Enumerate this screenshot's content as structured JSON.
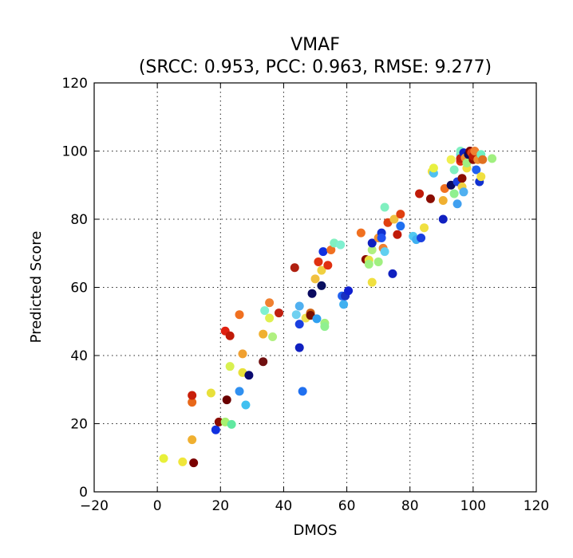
{
  "chart_data": {
    "type": "scatter",
    "title": "VMAF",
    "subtitle": "(SRCC: 0.953, PCC: 0.963, RMSE: 9.277)",
    "xlabel": "DMOS",
    "ylabel": "Predicted Score",
    "xlim": [
      -20,
      120
    ],
    "ylim": [
      0,
      120
    ],
    "xticks": [
      -20,
      0,
      20,
      40,
      60,
      80,
      100,
      120
    ],
    "yticks": [
      0,
      20,
      40,
      60,
      80,
      100,
      120
    ],
    "grid": true,
    "colormap": "jet",
    "points": [
      {
        "x": 2,
        "y": 9.8,
        "c": "#e8f03a"
      },
      {
        "x": 8,
        "y": 8.8,
        "c": "#f0e63a"
      },
      {
        "x": 11.5,
        "y": 8.5,
        "c": "#7a0000"
      },
      {
        "x": 11,
        "y": 15.3,
        "c": "#f0b030"
      },
      {
        "x": 11,
        "y": 26.3,
        "c": "#e8681a"
      },
      {
        "x": 11,
        "y": 28.3,
        "c": "#c81e0a"
      },
      {
        "x": 17,
        "y": 29,
        "c": "#e8e03a"
      },
      {
        "x": 18.5,
        "y": 18.2,
        "c": "#1030e0"
      },
      {
        "x": 19.5,
        "y": 20.5,
        "c": "#8a0c00"
      },
      {
        "x": 21.5,
        "y": 20.5,
        "c": "#a8f070"
      },
      {
        "x": 23.5,
        "y": 19.8,
        "c": "#60e8a0"
      },
      {
        "x": 22,
        "y": 27,
        "c": "#6a0000"
      },
      {
        "x": 23,
        "y": 36.8,
        "c": "#d8f050"
      },
      {
        "x": 21.5,
        "y": 47.2,
        "c": "#e02010"
      },
      {
        "x": 23,
        "y": 45.8,
        "c": "#c01a08"
      },
      {
        "x": 26,
        "y": 29.5,
        "c": "#3090f0"
      },
      {
        "x": 27,
        "y": 35,
        "c": "#e8e03a"
      },
      {
        "x": 28,
        "y": 25.5,
        "c": "#40c0f0"
      },
      {
        "x": 26,
        "y": 52,
        "c": "#f07020"
      },
      {
        "x": 27,
        "y": 40.5,
        "c": "#f0a030"
      },
      {
        "x": 29,
        "y": 34.2,
        "c": "#0a0a70"
      },
      {
        "x": 33.5,
        "y": 38.2,
        "c": "#701010"
      },
      {
        "x": 33.5,
        "y": 46.3,
        "c": "#f0b030"
      },
      {
        "x": 34,
        "y": 53.2,
        "c": "#80f0d0"
      },
      {
        "x": 35.5,
        "y": 55.5,
        "c": "#f08030"
      },
      {
        "x": 35.5,
        "y": 51,
        "c": "#e0f050"
      },
      {
        "x": 36.5,
        "y": 45.5,
        "c": "#b0f080"
      },
      {
        "x": 38.5,
        "y": 52.5,
        "c": "#c02010"
      },
      {
        "x": 43.5,
        "y": 65.8,
        "c": "#b02010"
      },
      {
        "x": 44,
        "y": 52,
        "c": "#70d0f0"
      },
      {
        "x": 45,
        "y": 49.2,
        "c": "#1a40e0"
      },
      {
        "x": 45,
        "y": 42.3,
        "c": "#1020c0"
      },
      {
        "x": 45,
        "y": 54.5,
        "c": "#50b0f0"
      },
      {
        "x": 46,
        "y": 29.5,
        "c": "#2070f0"
      },
      {
        "x": 47,
        "y": 51,
        "c": "#f0e050"
      },
      {
        "x": 48.5,
        "y": 52.5,
        "c": "#d06010"
      },
      {
        "x": 48.5,
        "y": 51.8,
        "c": "#7a1000"
      },
      {
        "x": 49,
        "y": 58.2,
        "c": "#0a0a60"
      },
      {
        "x": 50,
        "y": 62.5,
        "c": "#f0c040"
      },
      {
        "x": 50.5,
        "y": 50.8,
        "c": "#30a0f0"
      },
      {
        "x": 51,
        "y": 67.5,
        "c": "#e03010"
      },
      {
        "x": 52,
        "y": 60.5,
        "c": "#0a1060"
      },
      {
        "x": 52,
        "y": 65,
        "c": "#f0d040"
      },
      {
        "x": 52.5,
        "y": 70.5,
        "c": "#1030e0"
      },
      {
        "x": 53,
        "y": 49.5,
        "c": "#a0f080"
      },
      {
        "x": 53,
        "y": 48.5,
        "c": "#90f090"
      },
      {
        "x": 54,
        "y": 66.5,
        "c": "#e03010"
      },
      {
        "x": 55,
        "y": 71,
        "c": "#f07020"
      },
      {
        "x": 56,
        "y": 73,
        "c": "#80f0c0"
      },
      {
        "x": 58,
        "y": 72.5,
        "c": "#80f0d0"
      },
      {
        "x": 58.5,
        "y": 57.5,
        "c": "#2060f0"
      },
      {
        "x": 59,
        "y": 55,
        "c": "#40b0f0"
      },
      {
        "x": 59.5,
        "y": 57.5,
        "c": "#1a30c0"
      },
      {
        "x": 60.5,
        "y": 59,
        "c": "#1020d0"
      },
      {
        "x": 64.5,
        "y": 76,
        "c": "#f07020"
      },
      {
        "x": 66,
        "y": 68.2,
        "c": "#8a0c00"
      },
      {
        "x": 67,
        "y": 68,
        "c": "#e8e040"
      },
      {
        "x": 67,
        "y": 66.8,
        "c": "#a0f080"
      },
      {
        "x": 68,
        "y": 71,
        "c": "#b0f080"
      },
      {
        "x": 68,
        "y": 61.5,
        "c": "#f0e040"
      },
      {
        "x": 68,
        "y": 73,
        "c": "#1020c0"
      },
      {
        "x": 70,
        "y": 74.5,
        "c": "#f09030"
      },
      {
        "x": 70,
        "y": 67.5,
        "c": "#a0f080"
      },
      {
        "x": 71,
        "y": 76,
        "c": "#1030d0"
      },
      {
        "x": 71,
        "y": 74.5,
        "c": "#2050f0"
      },
      {
        "x": 71.5,
        "y": 71.5,
        "c": "#f08030"
      },
      {
        "x": 72,
        "y": 70.5,
        "c": "#60d0f0"
      },
      {
        "x": 72,
        "y": 83.5,
        "c": "#80f0c0"
      },
      {
        "x": 73,
        "y": 79,
        "c": "#e04010"
      },
      {
        "x": 74.5,
        "y": 64,
        "c": "#1020c0"
      },
      {
        "x": 75,
        "y": 80,
        "c": "#f0c040"
      },
      {
        "x": 76,
        "y": 75.5,
        "c": "#c01a08"
      },
      {
        "x": 77,
        "y": 81.5,
        "c": "#e04010"
      },
      {
        "x": 77,
        "y": 78,
        "c": "#2070f0"
      },
      {
        "x": 81,
        "y": 75,
        "c": "#50c8f0"
      },
      {
        "x": 82,
        "y": 74,
        "c": "#40b0f0"
      },
      {
        "x": 83,
        "y": 87.5,
        "c": "#c01a08"
      },
      {
        "x": 83.5,
        "y": 74.5,
        "c": "#1a40e0"
      },
      {
        "x": 84.5,
        "y": 77.5,
        "c": "#f0e040"
      },
      {
        "x": 86.5,
        "y": 86,
        "c": "#8a0c00"
      },
      {
        "x": 87,
        "y": 94,
        "c": "#f0e040"
      },
      {
        "x": 87.5,
        "y": 93.5,
        "c": "#50c0f0"
      },
      {
        "x": 87.5,
        "y": 95,
        "c": "#e8f040"
      },
      {
        "x": 90.5,
        "y": 80,
        "c": "#1020c0"
      },
      {
        "x": 90.5,
        "y": 85.5,
        "c": "#f0b030"
      },
      {
        "x": 91,
        "y": 89,
        "c": "#f07020"
      },
      {
        "x": 93,
        "y": 90,
        "c": "#0a0a60"
      },
      {
        "x": 93,
        "y": 97.5,
        "c": "#f0f050"
      },
      {
        "x": 94,
        "y": 94.5,
        "c": "#80f0c0"
      },
      {
        "x": 94,
        "y": 87.5,
        "c": "#90f090"
      },
      {
        "x": 95,
        "y": 84.5,
        "c": "#40a0f0"
      },
      {
        "x": 95,
        "y": 91,
        "c": "#1a40e0"
      },
      {
        "x": 96,
        "y": 99,
        "c": "#60e0e0"
      },
      {
        "x": 96,
        "y": 100,
        "c": "#80f0c0"
      },
      {
        "x": 96,
        "y": 97,
        "c": "#e03010"
      },
      {
        "x": 96,
        "y": 97.8,
        "c": "#c02010"
      },
      {
        "x": 96.5,
        "y": 92,
        "c": "#8a0c00"
      },
      {
        "x": 96.5,
        "y": 89.5,
        "c": "#f0d040"
      },
      {
        "x": 97,
        "y": 88,
        "c": "#50b0f0"
      },
      {
        "x": 97,
        "y": 99.5,
        "c": "#1020c0"
      },
      {
        "x": 97.5,
        "y": 98,
        "c": "#f09030"
      },
      {
        "x": 98,
        "y": 95,
        "c": "#f0e040"
      },
      {
        "x": 98,
        "y": 96.5,
        "c": "#a0f080"
      },
      {
        "x": 98.5,
        "y": 99,
        "c": "#0a0a60"
      },
      {
        "x": 99,
        "y": 100,
        "c": "#7a0000"
      },
      {
        "x": 99.5,
        "y": 99.5,
        "c": "#e04010"
      },
      {
        "x": 100,
        "y": 97.5,
        "c": "#8a0c00"
      },
      {
        "x": 100,
        "y": 98.5,
        "c": "#c01a08"
      },
      {
        "x": 100.5,
        "y": 100,
        "c": "#f08030"
      },
      {
        "x": 101,
        "y": 94.5,
        "c": "#2060f0"
      },
      {
        "x": 101.5,
        "y": 97.5,
        "c": "#f09030"
      },
      {
        "x": 102,
        "y": 91,
        "c": "#1030d0"
      },
      {
        "x": 102.5,
        "y": 92.5,
        "c": "#f0e040"
      },
      {
        "x": 102.5,
        "y": 99,
        "c": "#70f0c0"
      },
      {
        "x": 103,
        "y": 97.5,
        "c": "#e07020"
      },
      {
        "x": 106,
        "y": 97.8,
        "c": "#a0f080"
      }
    ]
  }
}
